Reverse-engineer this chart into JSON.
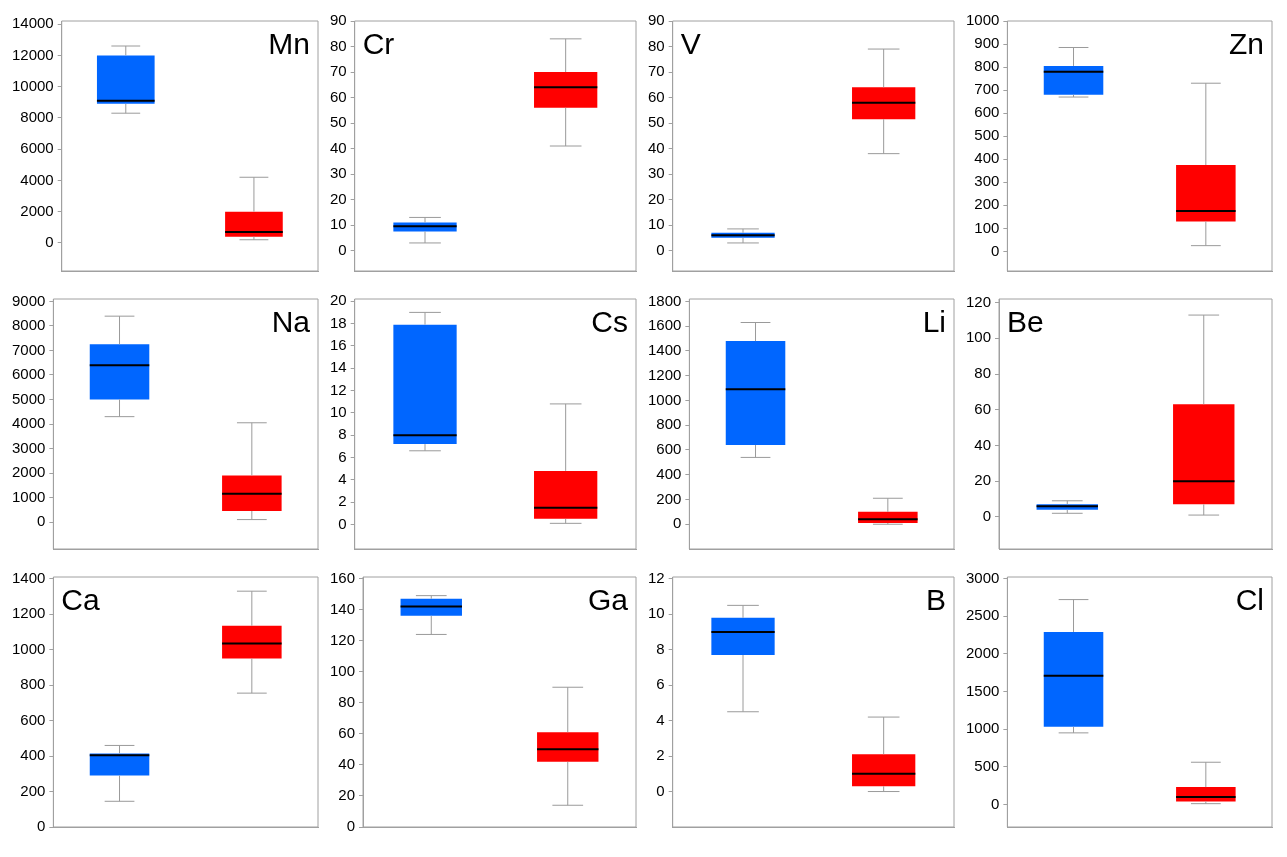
{
  "chart_data": [
    {
      "type": "box",
      "title": "Mn",
      "categories": [
        null,
        null
      ],
      "ylim": [
        -1800,
        14200
      ],
      "yticks": [
        0,
        2000,
        4000,
        6000,
        8000,
        10000,
        12000,
        14000
      ],
      "grid": false,
      "tick_labels": "y",
      "series": [
        {
          "color": "#0066ff",
          "boxes": [
            {
              "low": 8300,
              "q1": 8900,
              "median": 9100,
              "q3": 12000,
              "high": 12600
            },
            null
          ]
        },
        {
          "color": "#ff0000",
          "boxes": [
            null,
            {
              "low": 200,
              "q1": 400,
              "median": 700,
              "q3": 2000,
              "high": 4200
            }
          ]
        }
      ]
    },
    {
      "type": "box",
      "title": "Cr",
      "categories": [
        null,
        null
      ],
      "ylim": [
        -8,
        90
      ],
      "yticks": [
        0,
        10,
        20,
        30,
        40,
        50,
        60,
        70,
        80,
        90
      ],
      "grid": false,
      "tick_labels": "y",
      "series": [
        {
          "color": "#0066ff",
          "boxes": [
            {
              "low": 3,
              "q1": 7.5,
              "median": 9.5,
              "q3": 11,
              "high": 13
            },
            null
          ]
        },
        {
          "color": "#ff0000",
          "boxes": [
            null,
            {
              "low": 41,
              "q1": 56,
              "median": 64,
              "q3": 70,
              "high": 83
            }
          ]
        }
      ]
    },
    {
      "type": "box",
      "title": "V",
      "categories": [
        null,
        null
      ],
      "ylim": [
        -8,
        90
      ],
      "yticks": [
        0,
        10,
        20,
        30,
        40,
        50,
        60,
        70,
        80,
        90
      ],
      "grid": false,
      "tick_labels": "y",
      "series": [
        {
          "color": "#0066ff",
          "boxes": [
            {
              "low": 3,
              "q1": 5,
              "median": 6,
              "q3": 7,
              "high": 8.5
            },
            null
          ]
        },
        {
          "color": "#ff0000",
          "boxes": [
            null,
            {
              "low": 38,
              "q1": 51.5,
              "median": 58,
              "q3": 64,
              "high": 79
            }
          ]
        }
      ]
    },
    {
      "type": "box",
      "title": "Zn",
      "categories": [
        null,
        null
      ],
      "ylim": [
        -85,
        1000
      ],
      "yticks": [
        0,
        100,
        200,
        300,
        400,
        500,
        600,
        700,
        800,
        900,
        1000
      ],
      "grid": false,
      "tick_labels": "y",
      "series": [
        {
          "color": "#0066ff",
          "boxes": [
            {
              "low": 670,
              "q1": 680,
              "median": 780,
              "q3": 805,
              "high": 885
            },
            null
          ]
        },
        {
          "color": "#ff0000",
          "boxes": [
            null,
            {
              "low": 25,
              "q1": 130,
              "median": 175,
              "q3": 375,
              "high": 730
            }
          ]
        }
      ]
    },
    {
      "type": "box",
      "title": "Na",
      "categories": [
        null,
        null
      ],
      "ylim": [
        -1100,
        9100
      ],
      "yticks": [
        0,
        1000,
        2000,
        3000,
        4000,
        5000,
        6000,
        7000,
        8000,
        9000
      ],
      "grid": false,
      "tick_labels": "y",
      "series": [
        {
          "color": "#0066ff",
          "boxes": [
            {
              "low": 4300,
              "q1": 5000,
              "median": 6400,
              "q3": 7250,
              "high": 8400
            },
            null
          ]
        },
        {
          "color": "#ff0000",
          "boxes": [
            null,
            {
              "low": 100,
              "q1": 450,
              "median": 1150,
              "q3": 1900,
              "high": 4050
            }
          ]
        }
      ]
    },
    {
      "type": "box",
      "title": "Cs",
      "categories": [
        null,
        null
      ],
      "ylim": [
        -2.2,
        20.2
      ],
      "yticks": [
        0,
        2,
        4,
        6,
        8,
        10,
        12,
        14,
        16,
        18,
        20
      ],
      "grid": false,
      "tick_labels": "y",
      "series": [
        {
          "color": "#0066ff",
          "boxes": [
            {
              "low": 6.6,
              "q1": 7.2,
              "median": 8,
              "q3": 17.9,
              "high": 19
            },
            null
          ]
        },
        {
          "color": "#ff0000",
          "boxes": [
            null,
            {
              "low": 0.1,
              "q1": 0.5,
              "median": 1.5,
              "q3": 4.8,
              "high": 10.8
            }
          ]
        }
      ]
    },
    {
      "type": "box",
      "title": "Li",
      "categories": [
        null,
        null
      ],
      "ylim": [
        -200,
        1820
      ],
      "yticks": [
        0,
        200,
        400,
        600,
        800,
        1000,
        1200,
        1400,
        1600,
        1800
      ],
      "grid": false,
      "tick_labels": "y",
      "series": [
        {
          "color": "#0066ff",
          "boxes": [
            {
              "low": 540,
              "q1": 640,
              "median": 1090,
              "q3": 1480,
              "high": 1630
            },
            null
          ]
        },
        {
          "color": "#ff0000",
          "boxes": [
            null,
            {
              "low": 0,
              "q1": 10,
              "median": 40,
              "q3": 100,
              "high": 210
            }
          ]
        }
      ]
    },
    {
      "type": "box",
      "title": "Be",
      "categories": [
        null,
        null
      ],
      "ylim": [
        -18,
        122
      ],
      "yticks": [
        0,
        20,
        40,
        60,
        80,
        100,
        120
      ],
      "grid": false,
      "tick_labels": "y",
      "series": [
        {
          "color": "#0066ff",
          "boxes": [
            {
              "low": 2,
              "q1": 4,
              "median": 6,
              "q3": 7,
              "high": 9
            },
            null
          ]
        },
        {
          "color": "#ff0000",
          "boxes": [
            null,
            {
              "low": 1,
              "q1": 7,
              "median": 20,
              "q3": 63,
              "high": 113
            }
          ]
        }
      ]
    },
    {
      "type": "box",
      "title": "Ca",
      "categories": [
        null,
        null
      ],
      "ylim": [
        0,
        1410
      ],
      "yticks": [
        0,
        200,
        400,
        600,
        800,
        1000,
        1200,
        1400
      ],
      "grid": false,
      "tick_labels": "y",
      "series": [
        {
          "color": "#0066ff",
          "boxes": [
            {
              "low": 145,
              "q1": 290,
              "median": 405,
              "q3": 415,
              "high": 460
            },
            null
          ]
        },
        {
          "color": "#ff0000",
          "boxes": [
            null,
            {
              "low": 755,
              "q1": 950,
              "median": 1035,
              "q3": 1135,
              "high": 1330
            }
          ]
        }
      ]
    },
    {
      "type": "box",
      "title": "Ga",
      "categories": [
        null,
        null
      ],
      "ylim": [
        0,
        161
      ],
      "yticks": [
        0,
        20,
        40,
        60,
        80,
        100,
        120,
        140,
        160
      ],
      "grid": false,
      "tick_labels": "y",
      "series": [
        {
          "color": "#0066ff",
          "boxes": [
            {
              "low": 124,
              "q1": 136,
              "median": 142,
              "q3": 147,
              "high": 149
            },
            null
          ]
        },
        {
          "color": "#ff0000",
          "boxes": [
            null,
            {
              "low": 14,
              "q1": 42,
              "median": 50,
              "q3": 61,
              "high": 90
            }
          ]
        }
      ]
    },
    {
      "type": "box",
      "title": "B",
      "categories": [
        null,
        null
      ],
      "ylim": [
        -2,
        12.1
      ],
      "yticks": [
        0,
        2,
        4,
        6,
        8,
        10,
        12
      ],
      "grid": false,
      "tick_labels": "y",
      "series": [
        {
          "color": "#0066ff",
          "boxes": [
            {
              "low": 4.5,
              "q1": 7.7,
              "median": 9,
              "q3": 9.8,
              "high": 10.5
            },
            null
          ]
        },
        {
          "color": "#ff0000",
          "boxes": [
            null,
            {
              "low": 0,
              "q1": 0.3,
              "median": 1,
              "q3": 2.1,
              "high": 4.2
            }
          ]
        }
      ]
    },
    {
      "type": "box",
      "title": "Cl",
      "categories": [
        null,
        null
      ],
      "ylim": [
        -300,
        3020
      ],
      "yticks": [
        0,
        500,
        1000,
        1500,
        2000,
        2500,
        3000
      ],
      "grid": false,
      "tick_labels": "y",
      "series": [
        {
          "color": "#0066ff",
          "boxes": [
            {
              "low": 950,
              "q1": 1030,
              "median": 1710,
              "q3": 2290,
              "high": 2720
            },
            null
          ]
        },
        {
          "color": "#ff0000",
          "boxes": [
            null,
            {
              "low": 10,
              "q1": 40,
              "median": 100,
              "q3": 230,
              "high": 560
            }
          ]
        }
      ]
    }
  ]
}
